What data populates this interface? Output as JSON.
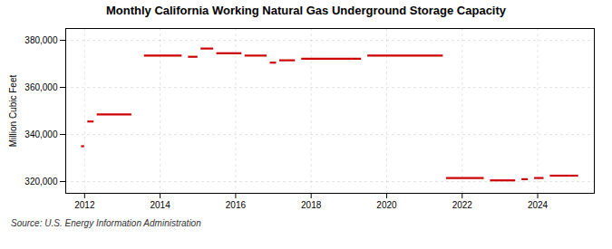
{
  "chart_data": {
    "type": "segment",
    "title": "Monthly California Working Natural Gas Underground Storage Capacity",
    "ylabel": "Million Cubic Feet",
    "source": "Source: U.S. Energy Information Administration",
    "color": "#cc0000",
    "grid": true,
    "xlim": [
      2011.5,
      2025.5
    ],
    "xticks": [
      2012,
      2014,
      2016,
      2018,
      2020,
      2022,
      2024
    ],
    "ylim": [
      315000,
      385000
    ],
    "yticks": [
      {
        "value": 320000,
        "label": "320,000"
      },
      {
        "value": 340000,
        "label": "340,000"
      },
      {
        "value": 360000,
        "label": "360,000"
      },
      {
        "value": 380000,
        "label": "380,000"
      }
    ],
    "segments": [
      {
        "x_start": 2011.917,
        "x_end": 2012.0,
        "y": 335000
      },
      {
        "x_start": 2012.083,
        "x_end": 2012.25,
        "y": 345500
      },
      {
        "x_start": 2012.333,
        "x_end": 2013.25,
        "y": 348500
      },
      {
        "x_start": 2013.583,
        "x_end": 2014.583,
        "y": 373500
      },
      {
        "x_start": 2014.75,
        "x_end": 2015.0,
        "y": 373000
      },
      {
        "x_start": 2015.083,
        "x_end": 2015.417,
        "y": 376500
      },
      {
        "x_start": 2015.5,
        "x_end": 2016.167,
        "y": 374500
      },
      {
        "x_start": 2016.25,
        "x_end": 2016.833,
        "y": 373500
      },
      {
        "x_start": 2016.917,
        "x_end": 2017.083,
        "y": 370500
      },
      {
        "x_start": 2017.167,
        "x_end": 2017.583,
        "y": 371500
      },
      {
        "x_start": 2017.75,
        "x_end": 2019.333,
        "y": 372200
      },
      {
        "x_start": 2019.5,
        "x_end": 2021.5,
        "y": 373500
      },
      {
        "x_start": 2021.583,
        "x_end": 2022.583,
        "y": 321500
      },
      {
        "x_start": 2022.75,
        "x_end": 2023.417,
        "y": 320500
      },
      {
        "x_start": 2023.583,
        "x_end": 2023.75,
        "y": 321000
      },
      {
        "x_start": 2023.917,
        "x_end": 2024.167,
        "y": 321500
      },
      {
        "x_start": 2024.333,
        "x_end": 2025.083,
        "y": 322500
      }
    ]
  }
}
